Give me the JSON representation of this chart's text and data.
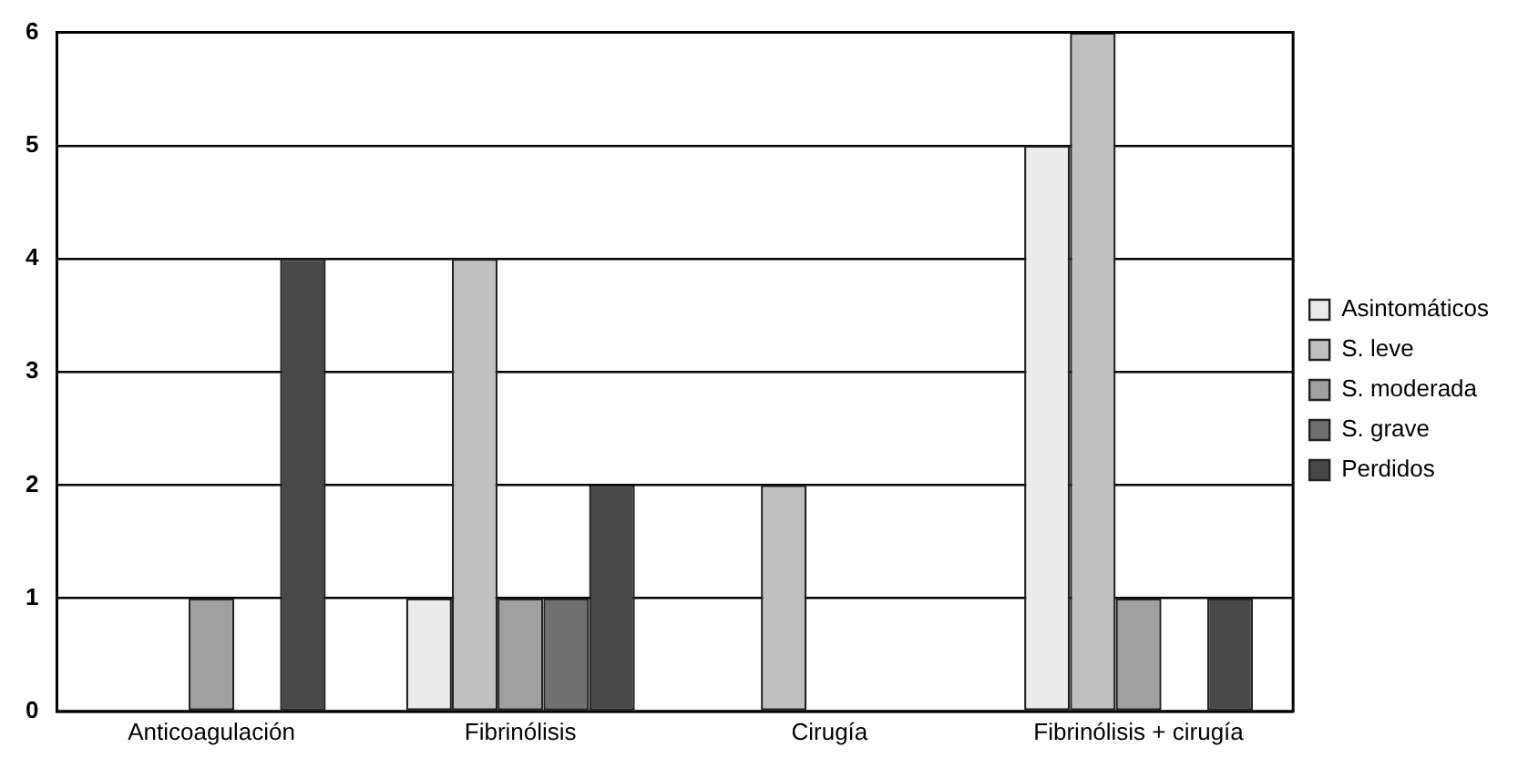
{
  "chart_data": {
    "type": "bar",
    "categories": [
      "Anticoagulación",
      "Fibrinólisis",
      "Cirugía",
      "Fibrinólisis + cirugía"
    ],
    "series": [
      {
        "name": "Asintomáticos",
        "color": "#ebebeb",
        "values": [
          0,
          1,
          0,
          5
        ]
      },
      {
        "name": "S. leve",
        "color": "#c0c0c0",
        "values": [
          0,
          4,
          2,
          6
        ]
      },
      {
        "name": "S. moderada",
        "color": "#a0a0a0",
        "values": [
          1,
          1,
          0,
          1
        ]
      },
      {
        "name": "S. grave",
        "color": "#707070",
        "values": [
          0,
          1,
          0,
          0
        ]
      },
      {
        "name": "Perdidos",
        "color": "#484848",
        "values": [
          4,
          2,
          0,
          1
        ]
      }
    ],
    "ylim": [
      0,
      6
    ],
    "yticks": [
      0,
      1,
      2,
      3,
      4,
      5,
      6
    ],
    "grid": "y",
    "legend": "right"
  }
}
